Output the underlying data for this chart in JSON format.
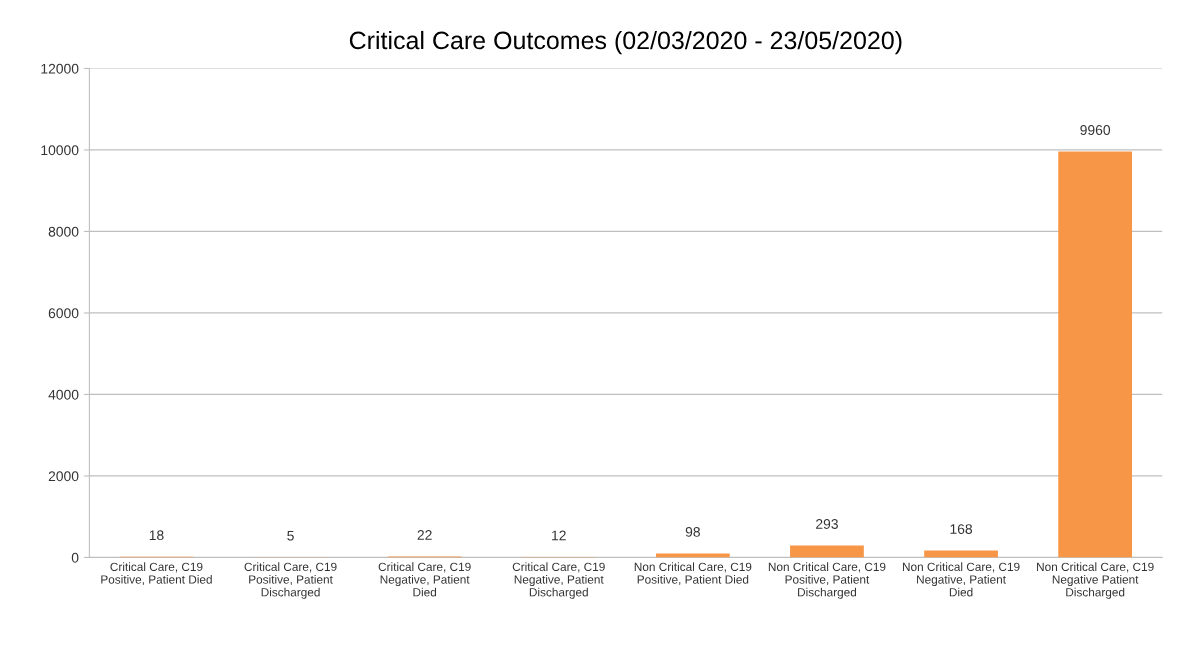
{
  "chart_data": {
    "type": "bar",
    "title": "Critical Care Outcomes (02/03/2020 - 23/05/2020)",
    "categories": [
      "Critical Care, C19\nPositive, Patient Died",
      "Critical Care, C19\nPositive, Patient\nDischarged",
      "Critical Care, C19\nNegative, Patient\nDied",
      "Critical Care, C19\nNegative, Patient\nDischarged",
      "Non Critical Care, C19\nPositive, Patient Died",
      "Non Critical Care, C19\nPositive, Patient\nDischarged",
      "Non Critical Care, C19\nNegative, Patient\nDied",
      "Non Critical Care, C19\nNegative Patient\nDischarged"
    ],
    "values": [
      18,
      5,
      22,
      12,
      98,
      293,
      168,
      9960
    ],
    "color": "#f79646",
    "ylim": [
      0,
      12000
    ],
    "yticks": [
      0,
      2000,
      4000,
      6000,
      8000,
      10000,
      12000
    ],
    "grid": "y",
    "data_labels": true
  }
}
